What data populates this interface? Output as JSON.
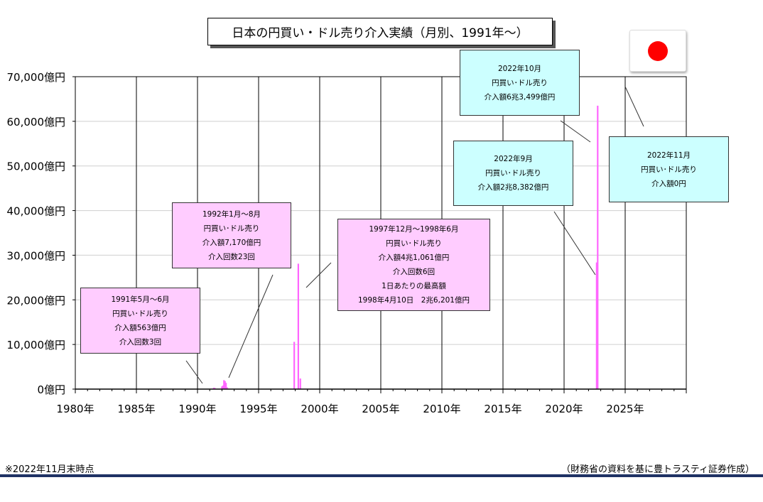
{
  "title": "日本の円買い・ドル売り介入実績（月別、1991年～）",
  "footnote": "※2022年11月末時点",
  "source": "（財務省の資料を基に豊トラスティ証券作成）",
  "colors": {
    "bars": "#ff66ff",
    "callout_pink": "#ffccff",
    "callout_cyan": "#ccffff",
    "flag_red": "#ff0000",
    "footer_rule": "#1f3264"
  },
  "flag": {
    "icon": "japan-flag-icon"
  },
  "callouts": [
    {
      "lines": [
        "1991年5月～6月",
        "円買い･ドル売り",
        "介入額563億円",
        "介入回数3回"
      ]
    },
    {
      "lines": [
        "1992年1月～8月",
        "円買い･ドル売り",
        "介入額7,170億円",
        "介入回数23回"
      ]
    },
    {
      "lines": [
        "1997年12月～1998年6月",
        "円買い･ドル売り",
        "介入額4兆1,061億円",
        "介入回数6回",
        "1日あたりの最高額",
        "1998年4月10日　2兆6,201億円"
      ]
    },
    {
      "lines": [
        "2022年9月",
        "円買い･ドル売り",
        "介入額2兆8,382億円"
      ]
    },
    {
      "lines": [
        "2022年10月",
        "円買い･ドル売り",
        "介入額6兆3,499億円"
      ]
    },
    {
      "lines": [
        "2022年11月",
        "円買い･ドル売り",
        "介入額0円"
      ]
    }
  ],
  "chart_data": {
    "type": "bar",
    "title": "日本の円買い・ドル売り介入実績（月別、1991年～）",
    "xlabel": "",
    "ylabel": "",
    "x_unit": "年",
    "xlim": [
      1980,
      2030
    ],
    "ylim": [
      0,
      70000
    ],
    "x_ticks": [
      "1980年",
      "1985年",
      "1990年",
      "1995年",
      "2000年",
      "2005年",
      "2010年",
      "2015年",
      "2020年",
      "2025年"
    ],
    "y_ticks": [
      "0億円",
      "10,000億円",
      "20,000億円",
      "30,000億円",
      "40,000億円",
      "50,000億円",
      "60,000億円",
      "70,000億円"
    ],
    "grid": true,
    "series": [
      {
        "x": [
          "1991-05",
          "1991-06",
          "1992-01",
          "1992-02",
          "1992-03",
          "1992-04",
          "1992-05",
          "1992-06",
          "1992-07",
          "1992-08",
          "1997-12",
          "1998-04",
          "1998-06",
          "2022-09",
          "2022-10",
          "2022-11"
        ],
        "values": [
          300,
          263,
          600,
          800,
          2000,
          1800,
          1400,
          400,
          120,
          50,
          10590,
          28101,
          2370,
          28382,
          63499,
          0
        ]
      }
    ]
  }
}
